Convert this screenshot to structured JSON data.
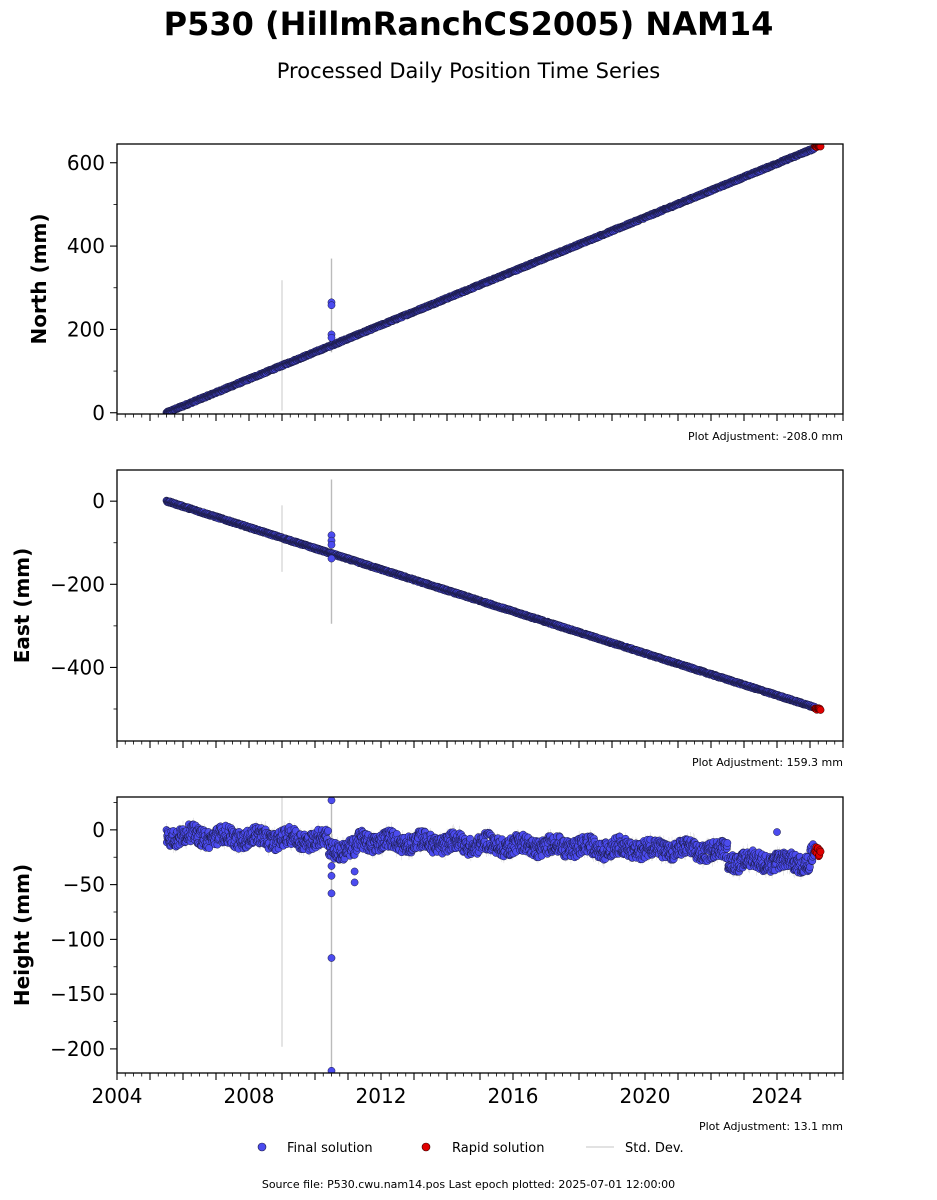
{
  "title": "P530 (HillmRanchCS2005) NAM14",
  "subtitle": "Processed Daily Position Time Series",
  "legend": {
    "final": "Final solution",
    "rapid": "Rapid solution",
    "std": "Std. Dev.",
    "placement": "bottom-center"
  },
  "footer": "Source file: P530.cwu.nam14.pos  Last epoch plotted: 2025-07-01 12:00:00",
  "colors": {
    "final": "#4b4bef",
    "final_edge": "#1a1a40",
    "rapid": "#e00000",
    "std": "#b4b4b4"
  },
  "x_axis": {
    "xlim": [
      2004.0,
      2026.0
    ],
    "ticks": [
      "2004",
      "2008",
      "2012",
      "2016",
      "2020",
      "2024"
    ],
    "tick_values": [
      2004,
      2008,
      2012,
      2016,
      2020,
      2024
    ],
    "minor_step": 0.25,
    "labels_on": "Height panel only"
  },
  "chart_data": [
    {
      "type": "scatter",
      "panel": "north",
      "ylabel": "North (mm)",
      "ylim": [
        -3,
        645
      ],
      "yticks": [
        "0",
        "200",
        "400",
        "600"
      ],
      "ytick_values": [
        0,
        200,
        400,
        600
      ],
      "adjustment": "Plot Adjustment: -208.0 mm",
      "trend": {
        "x_start": 2005.5,
        "y_start": 0,
        "x_end": 2025.3,
        "y_end": 640
      },
      "noise_amp": 2,
      "outliers": [
        {
          "x": 2010.5,
          "y": 265
        },
        {
          "x": 2010.5,
          "y": 258
        },
        {
          "x": 2010.5,
          "y": 188
        },
        {
          "x": 2010.5,
          "y": 180
        }
      ],
      "std_bars": [
        {
          "x": 2009.0,
          "y0": 5,
          "y1": 318
        },
        {
          "x": 2010.5,
          "y0": 145,
          "y1": 370
        }
      ],
      "rapid": {
        "x_start": 2025.15,
        "x_end": 2025.32,
        "y": 640,
        "spread": 3
      }
    },
    {
      "type": "scatter",
      "panel": "east",
      "ylabel": "East (mm)",
      "ylim": [
        -577,
        75
      ],
      "yticks": [
        "0",
        "−200",
        "−400"
      ],
      "ytick_values": [
        0,
        -200,
        -400
      ],
      "adjustment": "Plot Adjustment: 159.3 mm",
      "trend": {
        "x_start": 2005.5,
        "y_start": 0,
        "x_end": 2025.3,
        "y_end": -500
      },
      "noise_amp": 2,
      "outliers": [
        {
          "x": 2010.5,
          "y": -82
        },
        {
          "x": 2010.5,
          "y": -95
        },
        {
          "x": 2010.5,
          "y": -105
        },
        {
          "x": 2010.5,
          "y": -138
        }
      ],
      "std_bars": [
        {
          "x": 2009.0,
          "y0": -170,
          "y1": -10
        },
        {
          "x": 2010.5,
          "y0": -295,
          "y1": 52
        }
      ],
      "rapid": {
        "x_start": 2025.15,
        "x_end": 2025.32,
        "y": -500,
        "spread": 3
      }
    },
    {
      "type": "scatter",
      "panel": "height",
      "ylabel": "Height (mm)",
      "ylim": [
        -222,
        30
      ],
      "yticks": [
        "0",
        "−50",
        "−100",
        "−150",
        "−200"
      ],
      "ytick_values": [
        0,
        -50,
        -100,
        -150,
        -200
      ],
      "adjustment": "Plot Adjustment: 13.1 mm",
      "trend": {
        "x_start": 2005.5,
        "y_start": -5,
        "x_end": 2025.3,
        "y_end": -22
      },
      "noise_amp": 8,
      "outliers": [
        {
          "x": 2010.5,
          "y": 27
        },
        {
          "x": 2010.5,
          "y": -33
        },
        {
          "x": 2010.5,
          "y": -42
        },
        {
          "x": 2010.5,
          "y": -58
        },
        {
          "x": 2010.5,
          "y": -117
        },
        {
          "x": 2010.5,
          "y": -220
        },
        {
          "x": 2011.2,
          "y": -38
        },
        {
          "x": 2011.2,
          "y": -48
        },
        {
          "x": 2024.0,
          "y": -2
        }
      ],
      "std_bars": [
        {
          "x": 2009.0,
          "y0": -198,
          "y1": 30
        },
        {
          "x": 2010.5,
          "y0": -222,
          "y1": 30
        }
      ],
      "rapid": {
        "x_start": 2025.15,
        "x_end": 2025.32,
        "y": -20,
        "spread": 5
      }
    }
  ]
}
